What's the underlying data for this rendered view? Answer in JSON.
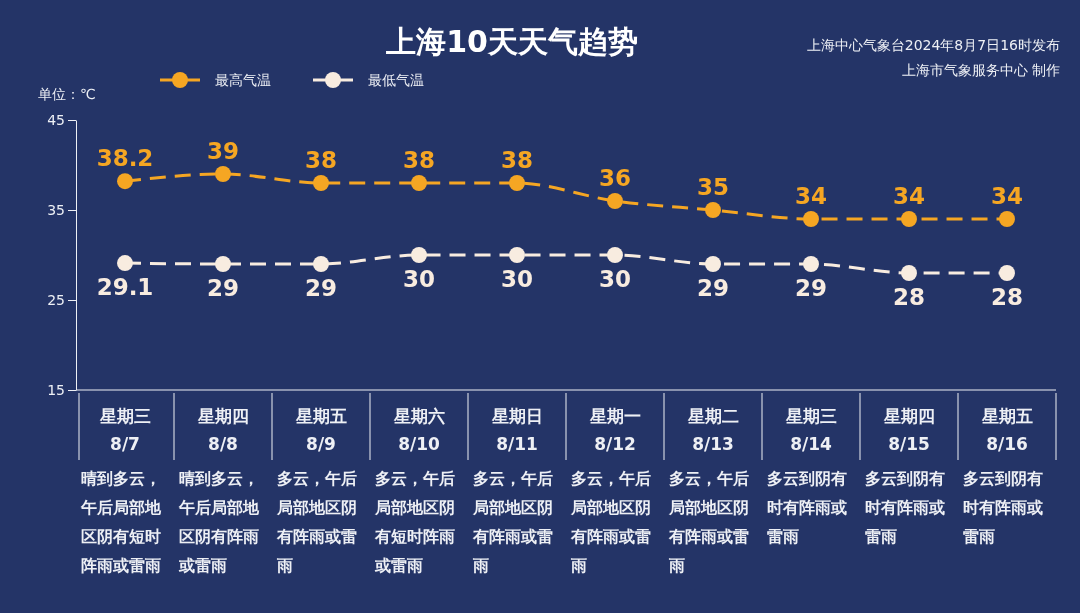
{
  "chart_data": {
    "type": "line",
    "title": "上海10天天气趋势",
    "ylabel": "单位：℃",
    "categories": [
      "星期三 8/7",
      "星期四 8/8",
      "星期五 8/9",
      "星期六 8/10",
      "星期日 8/11",
      "星期一 8/12",
      "星期二 8/13",
      "星期三 8/14",
      "星期四 8/15",
      "星期五 8/16"
    ],
    "series": [
      {
        "name": "最高气温",
        "color": "#f5a623",
        "values": [
          38.2,
          39,
          38,
          38,
          38,
          36,
          35,
          34,
          34,
          34
        ]
      },
      {
        "name": "最低气温",
        "color": "#f8ece0",
        "values": [
          29.1,
          29,
          29,
          30,
          30,
          30,
          29,
          29,
          28,
          28
        ]
      }
    ],
    "ylim": [
      15,
      45
    ],
    "yticks": [
      15,
      25,
      35,
      45
    ],
    "legend": "top left",
    "marker": "circle",
    "line_style": "dashed",
    "data_labels": true,
    "annotations": [
      "上海中心气象台2024年8月7日16时发布",
      "上海市气象服务中心 制作",
      "晴到多云，午后局部地区阴有短时阵雨或雷雨",
      "晴到多云，午后局部地区阴有阵雨或雷雨",
      "多云，午后局部地区阴有阵雨或雷雨",
      "多云，午后局部地区阴有短时阵雨或雷雨",
      "多云，午后局部地区阴有阵雨或雷雨",
      "多云，午后局部地区阴有阵雨或雷雨",
      "多云，午后局部地区阴有阵雨或雷雨",
      "多云到阴有时有阵雨或雷雨",
      "多云到阴有时有阵雨或雷雨",
      "多云到阴有时有阵雨或雷雨"
    ]
  }
}
